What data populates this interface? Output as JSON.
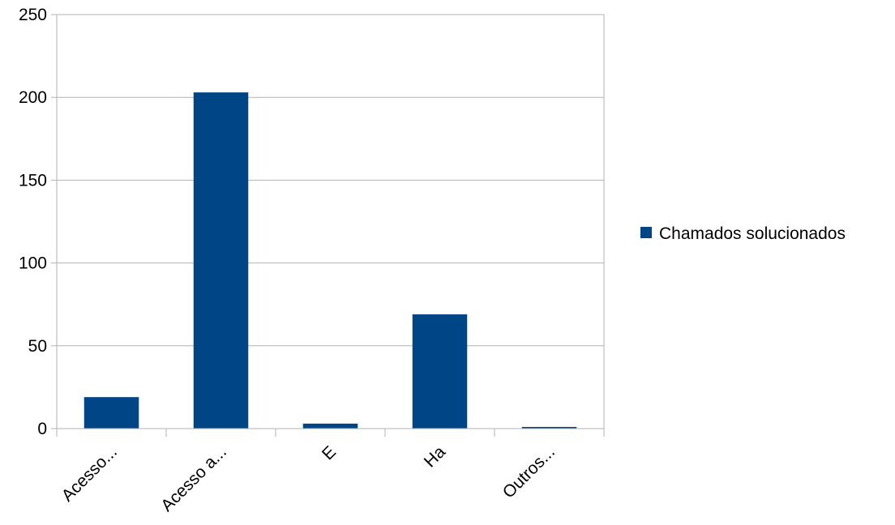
{
  "chart_data": {
    "type": "bar",
    "categories": [
      "Acesso...",
      "Acesso a...",
      "E",
      "Ha",
      "Outros..."
    ],
    "series": [
      {
        "name": "Chamados solucionados",
        "values": [
          19,
          203,
          3,
          69,
          1
        ],
        "color": "#004586"
      }
    ],
    "ylim": [
      0,
      250
    ],
    "yticks": [
      0,
      50,
      100,
      150,
      200,
      250
    ],
    "grid": true,
    "legend_position": "right",
    "title": "",
    "xlabel": "",
    "ylabel": ""
  }
}
